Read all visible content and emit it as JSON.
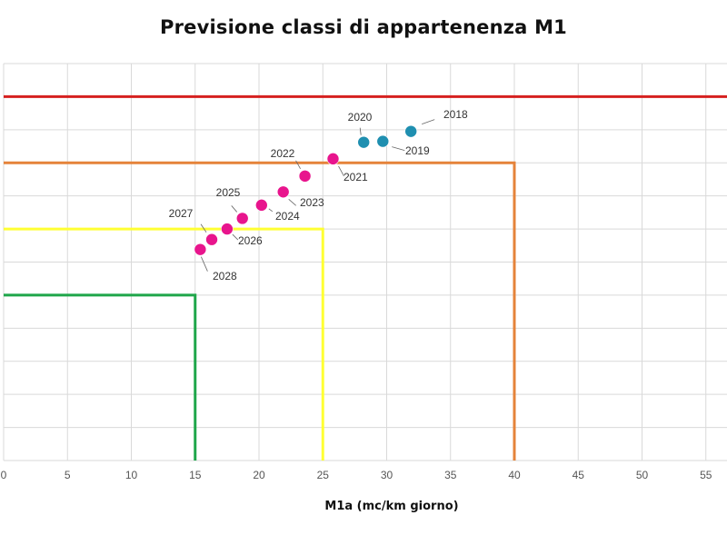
{
  "chart_data": {
    "type": "scatter",
    "title": "Previsione classi di appartenenza M1",
    "xlabel": "M1a (mc/km giorno)",
    "ylabel": "",
    "xlim": [
      0,
      57
    ],
    "ylim": [
      0,
      12
    ],
    "xticks": [
      0,
      5,
      10,
      15,
      20,
      25,
      30,
      35,
      40,
      45,
      50,
      55
    ],
    "grid": true,
    "class_boundaries": [
      {
        "x": 15,
        "y": 5,
        "color": "#1fa64a"
      },
      {
        "x": 25,
        "y": 7,
        "color": "#ffff33"
      },
      {
        "x": 40,
        "y": 9,
        "color": "#e5833a"
      },
      {
        "x": null,
        "y": 11,
        "color": "#d6201f"
      }
    ],
    "series": [
      {
        "color": "#1f8fb0",
        "points": [
          {
            "label": "2018",
            "x": 31.9,
            "y": 9.95
          },
          {
            "label": "2019",
            "x": 29.7,
            "y": 9.65
          },
          {
            "label": "2020",
            "x": 28.2,
            "y": 9.62
          }
        ]
      },
      {
        "color": "#e8158d",
        "points": [
          {
            "label": "2021",
            "x": 25.8,
            "y": 9.12
          },
          {
            "label": "2022",
            "x": 23.6,
            "y": 8.6
          },
          {
            "label": "2023",
            "x": 21.9,
            "y": 8.12
          },
          {
            "label": "2024",
            "x": 20.2,
            "y": 7.72
          },
          {
            "label": "2025",
            "x": 18.7,
            "y": 7.32
          },
          {
            "label": "2026",
            "x": 17.5,
            "y": 7.0
          },
          {
            "label": "2027",
            "x": 16.3,
            "y": 6.68
          },
          {
            "label": "2028",
            "x": 15.4,
            "y": 6.38
          }
        ]
      }
    ]
  }
}
